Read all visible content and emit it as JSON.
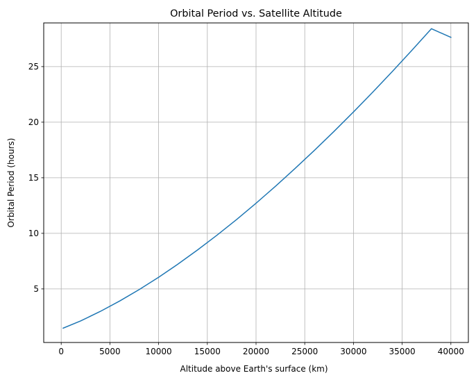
{
  "chart_data": {
    "type": "line",
    "title": "Orbital Period vs. Satellite Altitude",
    "xlabel": "Altitude above Earth's surface (km)",
    "ylabel": "Orbital Period (hours)",
    "xlim": [
      -1795,
      41795
    ],
    "ylim": [
      0.18,
      28.93
    ],
    "xticks": [
      0,
      5000,
      10000,
      15000,
      20000,
      25000,
      30000,
      35000,
      40000
    ],
    "yticks": [
      5,
      10,
      15,
      20,
      25
    ],
    "grid": true,
    "series": [
      {
        "color": "#1f77b4",
        "x": [
          200,
          2000,
          4000,
          6000,
          8000,
          10000,
          12000,
          14000,
          16000,
          18000,
          20000,
          22000,
          24000,
          26000,
          28000,
          30000,
          32000,
          34000,
          36000,
          38000,
          40000
        ],
        "y": [
          1.47,
          2.12,
          2.97,
          3.91,
          4.94,
          6.05,
          7.24,
          8.51,
          9.84,
          11.24,
          12.71,
          14.24,
          15.83,
          17.47,
          19.17,
          20.92,
          22.72,
          24.57,
          26.47,
          28.41,
          27.63
        ]
      }
    ]
  }
}
